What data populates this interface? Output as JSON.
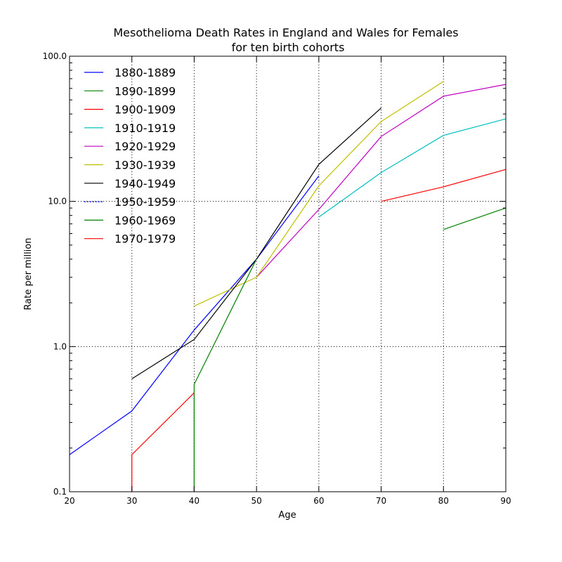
{
  "chart_data": {
    "type": "line",
    "title": "Mesothelioma Death Rates in England and Wales for Females",
    "subtitle": "for ten birth cohorts",
    "xlabel": "Age",
    "ylabel": "Rate per million",
    "xlim": [
      20,
      90
    ],
    "ylim": [
      0.1,
      100
    ],
    "yscale": "log",
    "grid": true,
    "legend_position": "top-left",
    "x_ticks": [
      20,
      30,
      40,
      50,
      60,
      70,
      80,
      90
    ],
    "x_tick_labels": [
      "20",
      "30",
      "40",
      "50",
      "60",
      "70",
      "80",
      "90"
    ],
    "y_ticks": [
      0.1,
      1,
      10,
      100
    ],
    "y_tick_labels": [
      "0.1",
      "1.0",
      "10.0",
      "100.0"
    ],
    "series": [
      {
        "name": "1880-1889",
        "color": "#0000ff",
        "x": [
          20,
          30,
          40,
          50,
          60
        ],
        "y": [
          0.18,
          0.36,
          1.3,
          4.0,
          15.0
        ]
      },
      {
        "name": "1890-1899",
        "color": "#008000",
        "x": [
          80,
          90
        ],
        "y": [
          6.4,
          9.0
        ]
      },
      {
        "name": "1900-1909",
        "color": "#ff0000",
        "x": [
          70,
          80,
          90
        ],
        "y": [
          10.0,
          12.6,
          16.6
        ]
      },
      {
        "name": "1910-1919",
        "color": "#00bfbf",
        "x": [
          60,
          70,
          80,
          90
        ],
        "y": [
          7.8,
          15.8,
          28.5,
          37.0
        ]
      },
      {
        "name": "1920-1929",
        "color": "#bf00bf",
        "x": [
          50,
          60,
          70,
          80,
          90
        ],
        "y": [
          3.0,
          8.8,
          28.0,
          53.0,
          64.0
        ]
      },
      {
        "name": "1930-1939",
        "color": "#bfbf00",
        "x": [
          40,
          50,
          60,
          70,
          80
        ],
        "y": [
          1.9,
          3.0,
          12.8,
          35.5,
          67.0
        ]
      },
      {
        "name": "1940-1949",
        "color": "#000000",
        "x": [
          30,
          40,
          50,
          60,
          70
        ],
        "y": [
          0.6,
          1.12,
          4.0,
          18.0,
          44.0
        ]
      },
      {
        "name": "1950-1959",
        "color": "#0000ff",
        "dashed": true,
        "x": [
          40,
          40
        ],
        "y": [
          0.1,
          0.5
        ]
      },
      {
        "name": "1960-1969",
        "color": "#008000",
        "x": [
          40,
          40,
          50
        ],
        "y": [
          0.1,
          0.55,
          4.0
        ]
      },
      {
        "name": "1970-1979",
        "color": "#ff0000",
        "x": [
          30,
          30,
          40
        ],
        "y": [
          0.1,
          0.18,
          0.48
        ]
      }
    ]
  }
}
